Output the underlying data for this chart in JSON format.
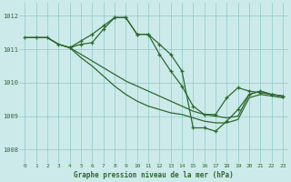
{
  "title": "Graphe pression niveau de la mer (hPa)",
  "bg_color": "#cceaea",
  "grid_color": "#8fc8c8",
  "line_color": "#2d6a2d",
  "xlim": [
    -0.5,
    23.5
  ],
  "ylim": [
    1007.6,
    1012.4
  ],
  "yticks": [
    1008,
    1009,
    1010,
    1011,
    1012
  ],
  "xticks": [
    0,
    1,
    2,
    3,
    4,
    5,
    6,
    7,
    8,
    9,
    10,
    11,
    12,
    13,
    14,
    15,
    16,
    17,
    18,
    19,
    20,
    21,
    22,
    23
  ],
  "series": [
    {
      "x": [
        0,
        1,
        2,
        3,
        4,
        5,
        6,
        7,
        8,
        9,
        10,
        11,
        12,
        13,
        14,
        15,
        16,
        17,
        18,
        19,
        20,
        21,
        22,
        23
      ],
      "y": [
        1011.35,
        1011.35,
        1011.35,
        1011.15,
        1011.05,
        1011.15,
        1011.2,
        1011.6,
        1011.95,
        1011.95,
        1011.45,
        1011.45,
        1010.85,
        1010.35,
        1009.9,
        1009.3,
        1009.05,
        1009.05,
        1009.55,
        1009.85,
        1009.75,
        1009.7,
        1009.65,
        1009.6
      ],
      "marker": true,
      "lw": 0.9
    },
    {
      "x": [
        0,
        1,
        2,
        3,
        4,
        5,
        6,
        7,
        8,
        9,
        10,
        11,
        12,
        13,
        14,
        15,
        16,
        17,
        18,
        19,
        20,
        21,
        22,
        23
      ],
      "y": [
        1011.35,
        1011.35,
        1011.35,
        1011.15,
        1011.05,
        1010.85,
        1010.65,
        1010.45,
        1010.25,
        1010.05,
        1009.9,
        1009.75,
        1009.6,
        1009.45,
        1009.3,
        1009.15,
        1009.05,
        1009.0,
        1008.95,
        1009.0,
        1009.65,
        1009.75,
        1009.65,
        1009.6
      ],
      "marker": false,
      "lw": 0.9
    },
    {
      "x": [
        0,
        1,
        2,
        3,
        4,
        5,
        6,
        7,
        8,
        9,
        10,
        11,
        12,
        13,
        14,
        15,
        16,
        17,
        18,
        19,
        20,
        21,
        22,
        23
      ],
      "y": [
        1011.35,
        1011.35,
        1011.35,
        1011.15,
        1011.05,
        1010.75,
        1010.5,
        1010.2,
        1009.9,
        1009.65,
        1009.45,
        1009.3,
        1009.2,
        1009.1,
        1009.05,
        1008.95,
        1008.85,
        1008.8,
        1008.8,
        1008.9,
        1009.55,
        1009.65,
        1009.6,
        1009.55
      ],
      "marker": false,
      "lw": 0.9
    },
    {
      "x": [
        4,
        5,
        6,
        7,
        8,
        9,
        10,
        11,
        12,
        13,
        14,
        15,
        16,
        17,
        18,
        19,
        20,
        21,
        22,
        23
      ],
      "y": [
        1011.05,
        1011.25,
        1011.45,
        1011.7,
        1011.95,
        1011.95,
        1011.45,
        1011.45,
        1011.15,
        1010.85,
        1010.35,
        1008.65,
        1008.65,
        1008.55,
        1008.85,
        1009.2,
        1009.65,
        1009.75,
        1009.65,
        1009.6
      ],
      "marker": true,
      "lw": 0.9
    }
  ]
}
